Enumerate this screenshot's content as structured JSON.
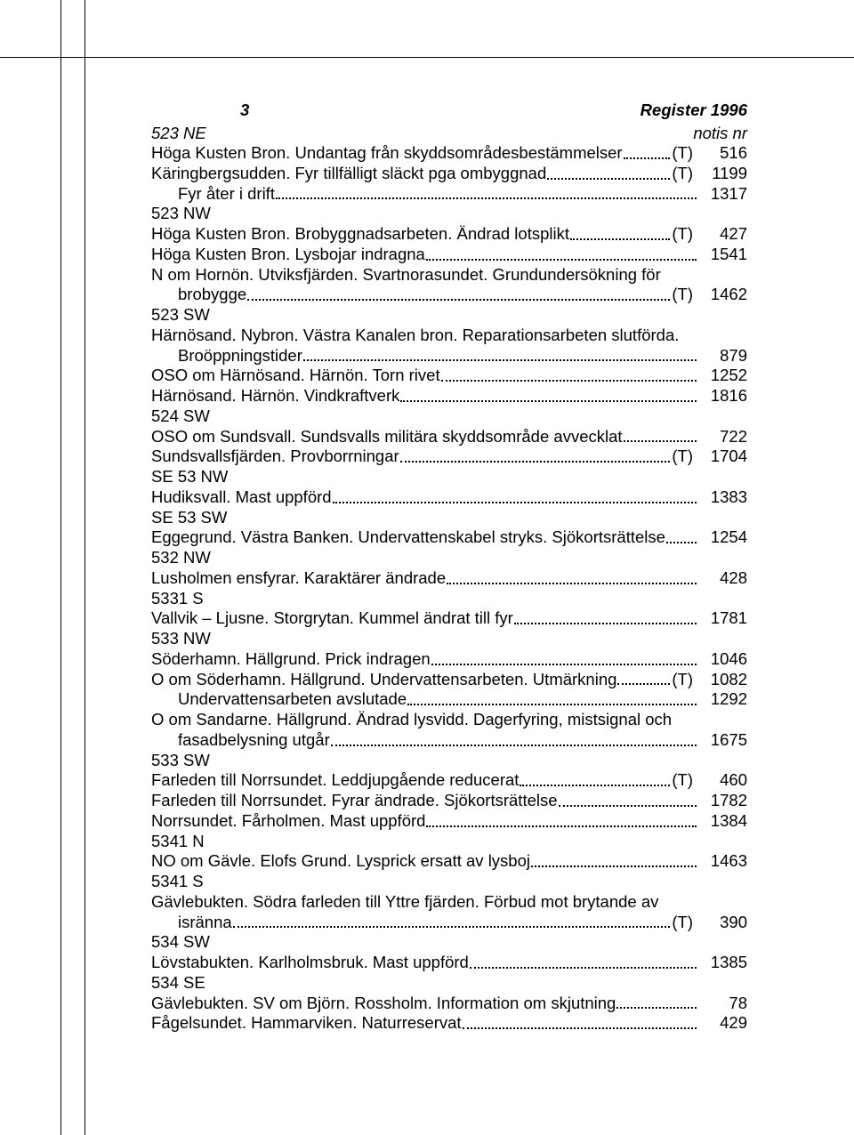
{
  "header": {
    "page_num": "3",
    "title": "Register 1996"
  },
  "notis": {
    "left": "523 NE",
    "right": "notis nr"
  },
  "rows": [
    {
      "type": "entry",
      "text": "Höga Kusten Bron. Undantag från skyddsområdesbestämmelser",
      "tag": "(T)",
      "num": "516"
    },
    {
      "type": "entry",
      "text": "Käringbergsudden. Fyr tillfälligt släckt pga ombyggnad",
      "tag": "(T)",
      "num": "1199"
    },
    {
      "type": "entry",
      "indent": 1,
      "text": "Fyr åter i drift",
      "num": "1317"
    },
    {
      "type": "section",
      "text": "523 NW"
    },
    {
      "type": "entry",
      "text": "Höga Kusten Bron. Brobyggnadsarbeten. Ändrad lotsplikt",
      "tag": " (T)",
      "num": "427"
    },
    {
      "type": "entry",
      "text": "Höga Kusten Bron. Lysbojar indragna",
      "num": "1541"
    },
    {
      "type": "entry-ml",
      "line1": "N om Hornön. Utviksfjärden. Svartnorasundet. Grundundersökning för",
      "cont": "brobygge",
      "tag": "(T)",
      "num": "1462"
    },
    {
      "type": "section",
      "text": "523 SW"
    },
    {
      "type": "entry-ml",
      "line1": "Härnösand. Nybron. Västra Kanalen bron. Reparationsarbeten slutförda.",
      "cont": "Broöppningstider",
      "num": "879"
    },
    {
      "type": "entry",
      "text": "OSO om Härnösand. Härnön. Torn rivet",
      "num": "1252"
    },
    {
      "type": "entry",
      "text": "Härnösand. Härnön. Vindkraftverk",
      "num": "1816"
    },
    {
      "type": "section",
      "text": "524 SW"
    },
    {
      "type": "entry",
      "text": "OSO om Sundsvall. Sundsvalls militära skyddsområde avvecklat",
      "num": "722"
    },
    {
      "type": "entry",
      "text": "Sundsvallsfjärden. Provborrningar",
      "tag": "(T)",
      "num": "1704"
    },
    {
      "type": "section",
      "text": "SE 53 NW"
    },
    {
      "type": "entry",
      "text": "Hudiksvall. Mast uppförd",
      "num": "1383"
    },
    {
      "type": "section",
      "text": "SE 53 SW"
    },
    {
      "type": "entry",
      "text": "Eggegrund. Västra Banken. Undervattenskabel stryks. Sjökortsrättelse",
      "num": "1254"
    },
    {
      "type": "section",
      "text": "532 NW"
    },
    {
      "type": "entry",
      "text": "Lusholmen ensfyrar. Karaktärer ändrade",
      "num": "428"
    },
    {
      "type": "section",
      "text": "5331 S"
    },
    {
      "type": "entry",
      "text": "Vallvik – Ljusne. Storgrytan. Kummel ändrat till fyr",
      "num": "1781"
    },
    {
      "type": "section",
      "text": "533 NW"
    },
    {
      "type": "entry",
      "text": "Söderhamn. Hällgrund. Prick indragen",
      "num": "1046"
    },
    {
      "type": "entry",
      "text": "O om Söderhamn. Hällgrund. Undervattensarbeten. Utmärkning",
      "tag": "(T)",
      "num": "1082"
    },
    {
      "type": "entry",
      "indent": 1,
      "text": "Undervattensarbeten avslutade",
      "num": "1292"
    },
    {
      "type": "entry-ml",
      "line1": "O om Sandarne. Hällgrund. Ändrad lysvidd. Dagerfyring, mistsignal och",
      "cont": "fasadbelysning utgår",
      "num": "1675"
    },
    {
      "type": "section",
      "text": "533 SW"
    },
    {
      "type": "entry",
      "text": "Farleden till Norrsundet. Leddjupgående reducerat",
      "tag": " (T)",
      "num": "460"
    },
    {
      "type": "entry",
      "text": "Farleden till Norrsundet. Fyrar ändrade. Sjökortsrättelse",
      "num": "1782"
    },
    {
      "type": "entry",
      "text": "Norrsundet. Fårholmen. Mast uppförd",
      "num": "1384"
    },
    {
      "type": "section",
      "text": "5341 N"
    },
    {
      "type": "entry",
      "text": "NO om Gävle. Elofs Grund. Lysprick ersatt av lysboj",
      "num": "1463"
    },
    {
      "type": "section",
      "text": "5341 S"
    },
    {
      "type": "entry-ml",
      "line1": "Gävlebukten. Södra farleden till Yttre fjärden. Förbud mot brytande av",
      "cont": "isränna",
      "tag": "(T)",
      "num": "390"
    },
    {
      "type": "section",
      "text": "534 SW"
    },
    {
      "type": "entry",
      "text": "Lövstabukten. Karlholmsbruk. Mast uppförd",
      "num": "1385"
    },
    {
      "type": "section",
      "text": "534 SE"
    },
    {
      "type": "entry",
      "text": "Gävlebukten. SV om Björn. Rossholm. Information om skjutning",
      "num": "78"
    },
    {
      "type": "entry",
      "text": "Fågelsundet. Hammarviken. Naturreservat",
      "num": "429"
    }
  ]
}
